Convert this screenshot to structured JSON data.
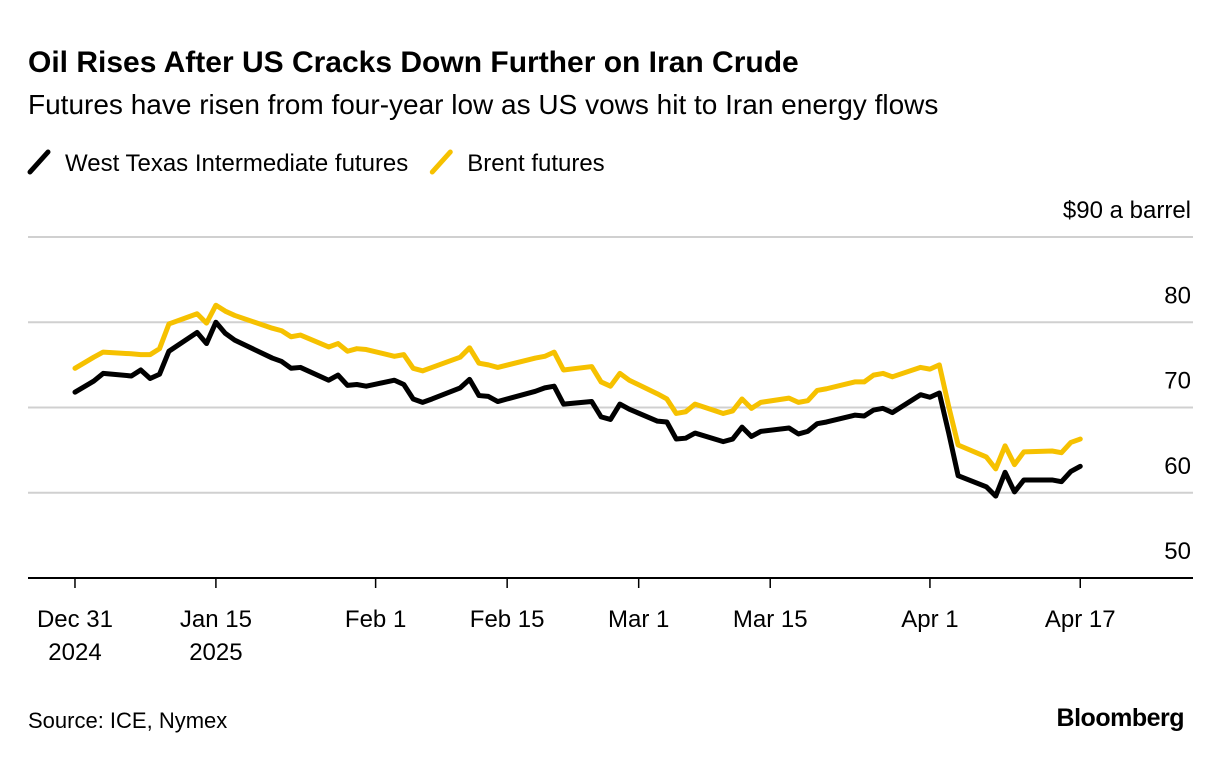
{
  "chart_data": {
    "type": "line",
    "title": "Oil Rises After US Cracks Down Further on Iran Crude",
    "subtitle": "Futures have risen from four-year low as US vows hit to Iran energy flows",
    "source": "Source: ICE, Nymex",
    "brand": "Bloomberg",
    "x": [
      "2024-12-31",
      "2025-01-02",
      "2025-01-03",
      "2025-01-06",
      "2025-01-07",
      "2025-01-08",
      "2025-01-09",
      "2025-01-10",
      "2025-01-13",
      "2025-01-14",
      "2025-01-15",
      "2025-01-16",
      "2025-01-17",
      "2025-01-21",
      "2025-01-22",
      "2025-01-23",
      "2025-01-24",
      "2025-01-27",
      "2025-01-28",
      "2025-01-29",
      "2025-01-30",
      "2025-01-31",
      "2025-02-03",
      "2025-02-04",
      "2025-02-05",
      "2025-02-06",
      "2025-02-07",
      "2025-02-10",
      "2025-02-11",
      "2025-02-12",
      "2025-02-13",
      "2025-02-14",
      "2025-02-18",
      "2025-02-19",
      "2025-02-20",
      "2025-02-21",
      "2025-02-24",
      "2025-02-25",
      "2025-02-26",
      "2025-02-27",
      "2025-02-28",
      "2025-03-03",
      "2025-03-04",
      "2025-03-05",
      "2025-03-06",
      "2025-03-07",
      "2025-03-10",
      "2025-03-11",
      "2025-03-12",
      "2025-03-13",
      "2025-03-14",
      "2025-03-17",
      "2025-03-18",
      "2025-03-19",
      "2025-03-20",
      "2025-03-21",
      "2025-03-24",
      "2025-03-25",
      "2025-03-26",
      "2025-03-27",
      "2025-03-28",
      "2025-03-31",
      "2025-04-01",
      "2025-04-02",
      "2025-04-03",
      "2025-04-04",
      "2025-04-07",
      "2025-04-08",
      "2025-04-09",
      "2025-04-10",
      "2025-04-11",
      "2025-04-14",
      "2025-04-15",
      "2025-04-16",
      "2025-04-17"
    ],
    "series": [
      {
        "name": "West Texas Intermediate futures",
        "color": "#000000",
        "values": [
          71.8,
          73.1,
          74.0,
          73.7,
          74.4,
          73.4,
          73.9,
          76.6,
          78.8,
          77.5,
          80.0,
          78.7,
          77.9,
          75.8,
          75.4,
          74.6,
          74.7,
          73.2,
          73.8,
          72.6,
          72.7,
          72.5,
          73.2,
          72.7,
          71.0,
          70.6,
          71.0,
          72.3,
          73.3,
          71.4,
          71.3,
          70.7,
          71.9,
          72.3,
          72.5,
          70.4,
          70.7,
          68.9,
          68.6,
          70.4,
          69.8,
          68.4,
          68.3,
          66.3,
          66.4,
          67.0,
          66.0,
          66.3,
          67.7,
          66.6,
          67.2,
          67.6,
          66.9,
          67.2,
          68.1,
          68.3,
          69.1,
          69.0,
          69.7,
          69.9,
          69.4,
          71.5,
          71.2,
          71.7,
          67.0,
          62.0,
          60.7,
          59.6,
          62.4,
          60.1,
          61.5,
          61.5,
          61.3,
          62.5,
          63.1
        ]
      },
      {
        "name": "Brent futures",
        "color": "#f6c100",
        "values": [
          74.6,
          75.9,
          76.5,
          76.3,
          76.2,
          76.2,
          76.9,
          79.8,
          81.0,
          79.9,
          82.0,
          81.3,
          80.8,
          79.3,
          79.0,
          78.3,
          78.5,
          77.1,
          77.5,
          76.6,
          76.9,
          76.8,
          76.0,
          76.2,
          74.6,
          74.3,
          74.7,
          75.9,
          77.0,
          75.2,
          75.0,
          74.7,
          75.8,
          76.0,
          76.5,
          74.4,
          74.8,
          73.0,
          72.5,
          74.0,
          73.2,
          71.6,
          71.0,
          69.3,
          69.5,
          70.4,
          69.3,
          69.6,
          71.0,
          69.9,
          70.6,
          71.1,
          70.6,
          70.8,
          72.0,
          72.2,
          73.0,
          73.0,
          73.8,
          74.0,
          73.6,
          74.7,
          74.5,
          75.0,
          70.1,
          65.6,
          64.2,
          62.8,
          65.5,
          63.3,
          64.8,
          64.9,
          64.7,
          65.9,
          66.3
        ]
      }
    ],
    "xlim": [
      "2024-12-26",
      "2025-04-29"
    ],
    "xticks": [
      {
        "value": "2024-12-31",
        "label": "Dec 31\n2024"
      },
      {
        "value": "2025-01-15",
        "label": "Jan 15\n2025"
      },
      {
        "value": "2025-02-01",
        "label": "Feb 1"
      },
      {
        "value": "2025-02-15",
        "label": "Feb 15"
      },
      {
        "value": "2025-03-01",
        "label": "Mar 1"
      },
      {
        "value": "2025-03-15",
        "label": "Mar 15"
      },
      {
        "value": "2025-04-01",
        "label": "Apr 1"
      },
      {
        "value": "2025-04-17",
        "label": "Apr 17"
      }
    ],
    "ylim": [
      50,
      90
    ],
    "yticks": [
      50,
      60,
      70,
      80,
      {
        "value": 90,
        "label": "$90 a barrel"
      }
    ],
    "grid": true
  }
}
